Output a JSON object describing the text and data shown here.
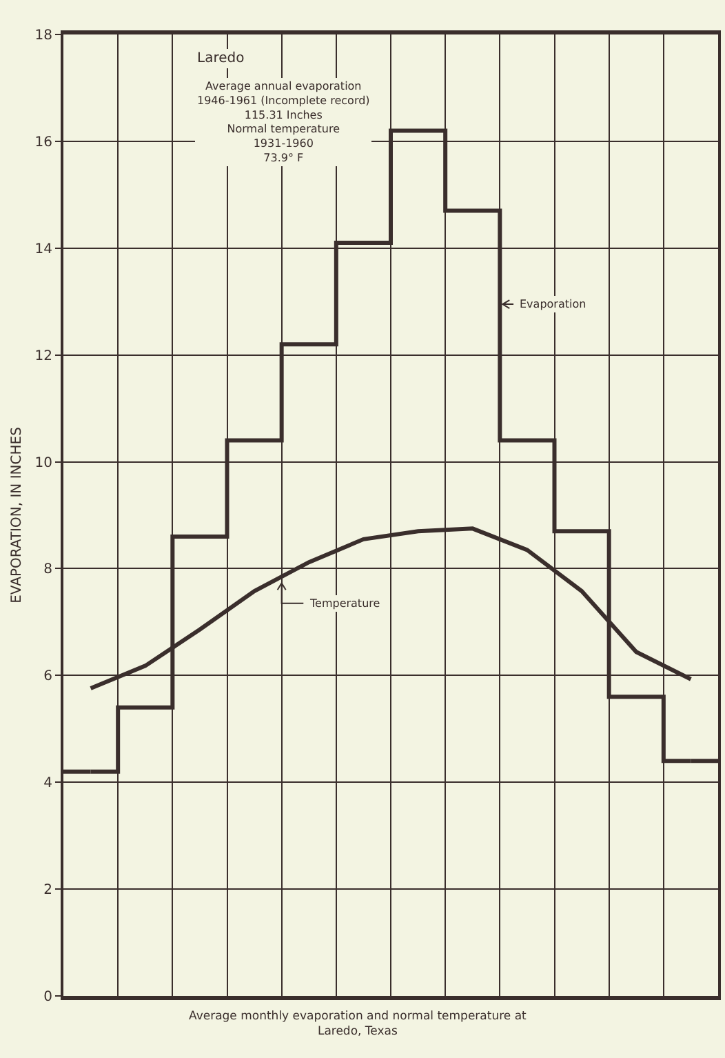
{
  "chart_data": {
    "type": "step",
    "title": "Laredo",
    "subtitle": "Average annual evaporation\n1946-1961 (Incomplete record)\n115.31 Inches\nNormal temperature\n1931-1960\n73.9° F",
    "ylabel": "EVAPORATION, IN INCHES",
    "categories": [
      null,
      null,
      null,
      null,
      null,
      null,
      null,
      null,
      null,
      null,
      null,
      null
    ],
    "series": [
      {
        "name": "Evaporation",
        "type": "step",
        "color": "#3a2e2c",
        "values": [
          4.2,
          5.4,
          8.6,
          10.4,
          12.2,
          14.1,
          16.2,
          14.7,
          10.4,
          8.7,
          5.6,
          4.4
        ]
      },
      {
        "name": "Temperature",
        "type": "line",
        "color": "#3a2e2c",
        "values": [
          5.76,
          6.18,
          6.86,
          7.58,
          8.12,
          8.55,
          8.7,
          8.75,
          8.35,
          7.58,
          6.44,
          5.93
        ]
      }
    ],
    "ylim": [
      0,
      18
    ],
    "yticks": [
      0,
      2,
      4,
      6,
      8,
      10,
      12,
      14,
      16,
      18
    ],
    "grid": true,
    "marker": "none",
    "line_style": "solid",
    "annotations": [
      "Average monthly evaporation and normal temperature at\nLaredo, Texas"
    ]
  }
}
